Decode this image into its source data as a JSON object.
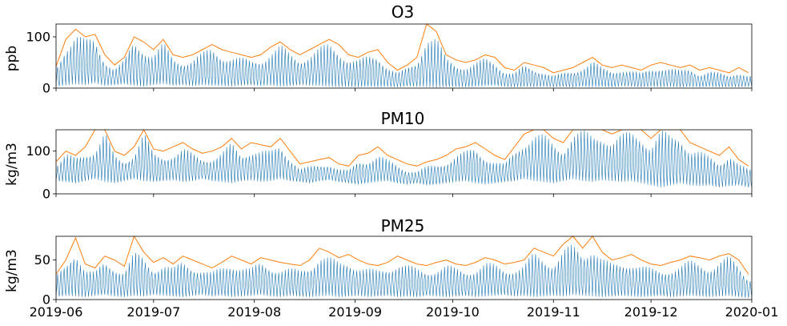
{
  "chart_data": [
    {
      "type": "line",
      "title": "O3",
      "ylabel": "ppb",
      "xlabel": "",
      "ylim": [
        0,
        125
      ],
      "yticks": [
        "0",
        "100"
      ],
      "ytick_values": [
        0,
        100
      ],
      "x_range": [
        "2019-06-01",
        "2020-01-01"
      ],
      "series": [
        {
          "color": "#1f77b4",
          "hourly_envelope": {
            "start": "2019-06-01",
            "step_days": 3,
            "min": [
              3,
              5,
              8,
              6,
              10,
              4,
              6,
              8,
              5,
              3,
              6,
              8,
              5,
              6,
              4,
              6,
              5,
              4,
              3,
              5,
              6,
              4,
              5,
              3,
              4,
              6,
              5,
              4,
              3,
              2,
              3,
              2,
              3,
              2,
              3,
              2,
              4,
              3,
              2,
              1,
              2,
              3,
              2,
              3,
              4,
              5,
              3,
              2,
              3,
              2,
              3,
              2,
              3,
              2,
              3,
              2,
              3,
              2,
              4,
              3,
              2,
              3,
              2,
              3,
              2,
              3,
              2,
              3,
              2,
              3,
              2,
              3
            ],
            "max": [
              40,
              90,
              112,
              95,
              100,
              60,
              40,
              55,
              95,
              85,
              70,
              90,
              60,
              55,
              60,
              70,
              80,
              70,
              65,
              60,
              55,
              60,
              75,
              85,
              70,
              60,
              70,
              80,
              90,
              80,
              60,
              55,
              65,
              70,
              45,
              30,
              40,
              55,
              110,
              100,
              60,
              50,
              45,
              50,
              60,
              55,
              35,
              30,
              45,
              40,
              35,
              25,
              30,
              35,
              45,
              55,
              40,
              35,
              40,
              35,
              30,
              40,
              45,
              40,
              35,
              40,
              30,
              35,
              30,
              25,
              35,
              25
            ]
          }
        },
        {
          "color": "#ff7f0e",
          "daily_max": {
            "start": "2019-06-01",
            "step_days": 3,
            "values": [
              42,
              95,
              115,
              100,
              105,
              65,
              45,
              60,
              100,
              90,
              75,
              95,
              65,
              60,
              65,
              75,
              85,
              75,
              70,
              65,
              60,
              65,
              80,
              90,
              75,
              65,
              75,
              85,
              95,
              85,
              65,
              60,
              70,
              75,
              50,
              35,
              45,
              60,
              125,
              110,
              65,
              55,
              50,
              55,
              65,
              60,
              40,
              35,
              50,
              45,
              40,
              30,
              35,
              40,
              50,
              60,
              45,
              40,
              45,
              40,
              35,
              45,
              50,
              45,
              40,
              45,
              35,
              40,
              35,
              30,
              40,
              30
            ]
          }
        }
      ]
    },
    {
      "type": "line",
      "title": "PM10",
      "ylabel": "kg/m3",
      "xlabel": "",
      "ylim": [
        0,
        150
      ],
      "yticks": [
        "0",
        "100"
      ],
      "ytick_values": [
        0,
        100
      ],
      "x_range": [
        "2019-06-01",
        "2020-01-01"
      ],
      "series": [
        {
          "color": "#1f77b4",
          "hourly_envelope": {
            "start": "2019-06-01",
            "step_days": 3,
            "min": [
              30,
              28,
              25,
              30,
              35,
              28,
              25,
              30,
              35,
              30,
              28,
              30,
              32,
              28,
              30,
              35,
              30,
              28,
              25,
              30,
              32,
              28,
              30,
              35,
              30,
              28,
              25,
              30,
              32,
              28,
              25,
              22,
              25,
              28,
              30,
              25,
              22,
              25,
              20,
              22,
              25,
              28,
              30,
              25,
              22,
              25,
              28,
              30,
              35,
              30,
              28,
              25,
              30,
              35,
              30,
              28,
              32,
              30,
              28,
              30,
              25,
              20,
              15,
              20,
              25,
              20,
              18,
              20,
              15,
              18,
              20,
              15
            ],
            "max": [
              70,
              95,
              85,
              100,
              110,
              150,
              90,
              80,
              100,
              150,
              95,
              90,
              100,
              110,
              95,
              85,
              90,
              100,
              120,
              95,
              110,
              105,
              100,
              120,
              90,
              60,
              65,
              70,
              75,
              60,
              55,
              80,
              85,
              95,
              80,
              70,
              60,
              55,
              65,
              70,
              80,
              95,
              100,
              110,
              95,
              80,
              70,
              100,
              130,
              150,
              140,
              120,
              110,
              150,
              150,
              140,
              150,
              130,
              140,
              150,
              150,
              120,
              150,
              140,
              150,
              110,
              100,
              90,
              80,
              100,
              70,
              60
            ]
          }
        },
        {
          "color": "#ff7f0e",
          "daily_max": {
            "start": "2019-06-01",
            "step_days": 3,
            "values": [
              75,
              100,
              90,
              110,
              150,
              150,
              100,
              90,
              110,
              150,
              105,
              100,
              110,
              120,
              105,
              95,
              100,
              110,
              130,
              105,
              120,
              115,
              110,
              130,
              100,
              70,
              75,
              80,
              85,
              70,
              65,
              90,
              95,
              110,
              90,
              80,
              70,
              65,
              75,
              80,
              90,
              105,
              110,
              120,
              105,
              90,
              80,
              110,
              140,
              150,
              150,
              130,
              120,
              150,
              150,
              150,
              150,
              140,
              150,
              150,
              150,
              130,
              150,
              150,
              150,
              120,
              110,
              100,
              90,
              110,
              80,
              65
            ]
          }
        }
      ]
    },
    {
      "type": "line",
      "title": "PM25",
      "ylabel": "kg/m3",
      "xlabel": "",
      "ylim": [
        0,
        80
      ],
      "yticks": [
        "0",
        "50"
      ],
      "ytick_values": [
        0,
        50
      ],
      "x_range": [
        "2019-06-01",
        "2020-01-01"
      ],
      "xticks": [
        "2019-06",
        "2019-07",
        "2019-08",
        "2019-09",
        "2019-10",
        "2019-11",
        "2019-12",
        "2020-01"
      ],
      "series": [
        {
          "color": "#1f77b4",
          "hourly_envelope": {
            "start": "2019-06-01",
            "step_days": 3,
            "min": [
              3,
              5,
              4,
              3,
              5,
              6,
              4,
              3,
              5,
              4,
              6,
              5,
              4,
              3,
              5,
              6,
              4,
              5,
              3,
              4,
              5,
              6,
              4,
              3,
              5,
              4,
              3,
              4,
              5,
              3,
              4,
              5,
              3,
              4,
              5,
              3,
              4,
              3,
              5,
              4,
              3,
              4,
              5,
              3,
              4,
              5,
              6,
              4,
              5,
              3,
              4,
              5,
              4,
              6,
              5,
              4,
              3,
              4,
              5,
              4,
              3,
              4,
              5,
              3,
              4,
              5,
              4,
              3,
              4,
              5,
              3,
              2
            ],
            "max": [
              30,
              45,
              70,
              40,
              35,
              50,
              45,
              38,
              60,
              55,
              42,
              48,
              40,
              50,
              45,
              40,
              35,
              42,
              50,
              45,
              40,
              48,
              45,
              42,
              40,
              38,
              45,
              60,
              55,
              48,
              52,
              45,
              40,
              38,
              42,
              50,
              45,
              40,
              38,
              42,
              45,
              40,
              38,
              42,
              48,
              45,
              40,
              42,
              45,
              60,
              55,
              50,
              65,
              70,
              60,
              75,
              55,
              45,
              48,
              52,
              45,
              40,
              38,
              42,
              45,
              50,
              48,
              45,
              50,
              55,
              45,
              30
            ]
          }
        },
        {
          "color": "#ff7f0e",
          "daily_max": {
            "start": "2019-06-01",
            "step_days": 3,
            "values": [
              32,
              50,
              78,
              45,
              40,
              55,
              50,
              42,
              80,
              60,
              47,
              53,
              45,
              55,
              50,
              45,
              40,
              47,
              55,
              50,
              45,
              53,
              50,
              47,
              45,
              43,
              50,
              65,
              60,
              53,
              57,
              50,
              45,
              43,
              47,
              55,
              50,
              45,
              43,
              47,
              50,
              45,
              43,
              47,
              53,
              50,
              45,
              47,
              50,
              65,
              60,
              55,
              70,
              80,
              65,
              80,
              60,
              50,
              53,
              57,
              50,
              45,
              43,
              47,
              50,
              55,
              53,
              50,
              55,
              58,
              50,
              32
            ]
          }
        }
      ]
    }
  ]
}
